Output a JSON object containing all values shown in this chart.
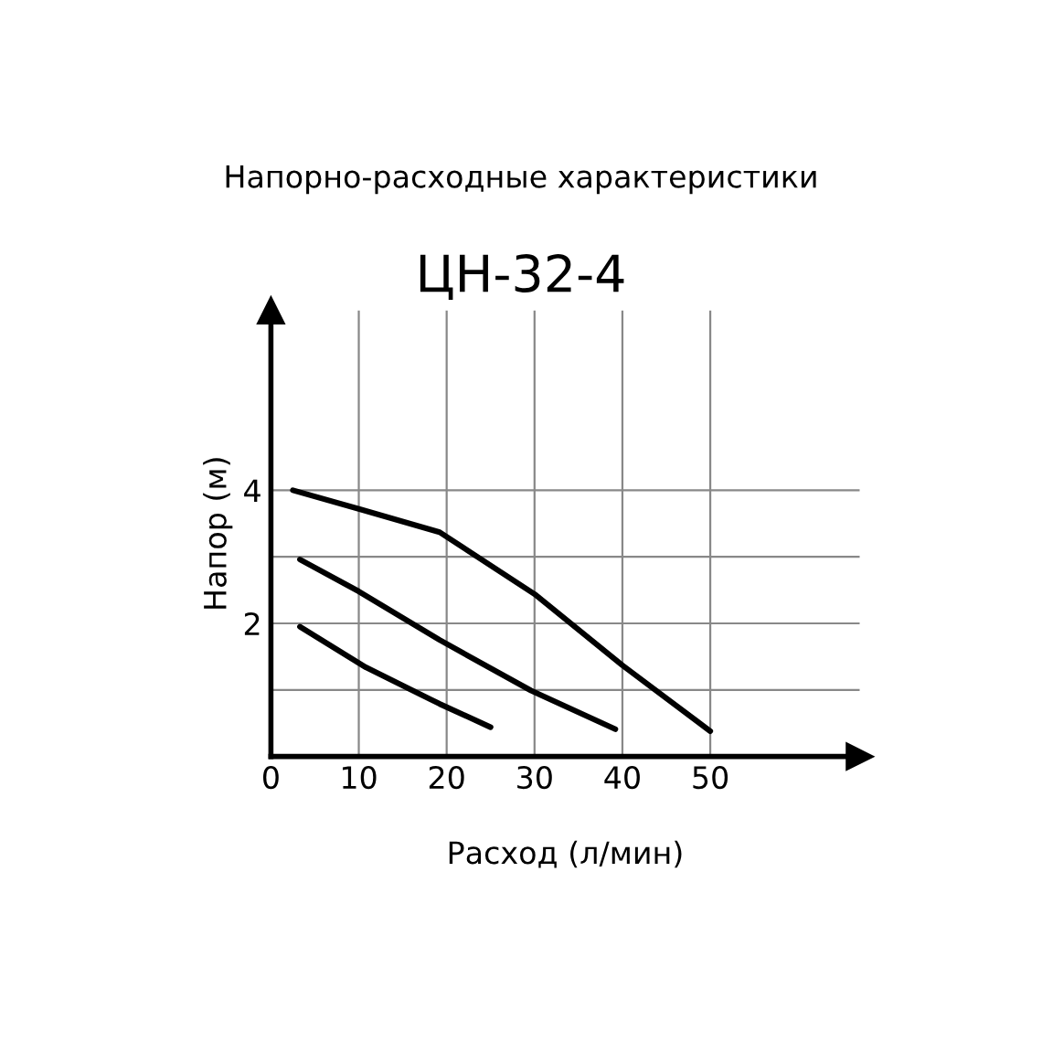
{
  "chart_data": {
    "type": "line",
    "title": "Напорно-расходные характеристики",
    "subtitle": "ЦН-32-4",
    "xlabel": "Расход (л/мин)",
    "ylabel": "Напор (м)",
    "xlim": [
      0,
      67
    ],
    "xticks": [
      0,
      10,
      20,
      30,
      40,
      50
    ],
    "ylim": [
      0,
      6.7
    ],
    "yticks": [
      {
        "value": 1,
        "label": null
      },
      2,
      {
        "value": 3,
        "label": null
      },
      4
    ],
    "grid": true,
    "marker": "none",
    "line_style": "solid",
    "series": [
      {
        "color": "#000000",
        "x": [
          2.5,
          10,
          19.2,
          30,
          40,
          50
        ],
        "values": [
          4.0,
          3.72,
          3.37,
          2.44,
          1.37,
          0.38
        ]
      },
      {
        "color": "#000000",
        "x": [
          3.3,
          10,
          19.2,
          29.6,
          39.2
        ],
        "values": [
          2.96,
          2.48,
          1.75,
          0.99,
          0.41
        ]
      },
      {
        "color": "#000000",
        "x": [
          3.3,
          10.8,
          19.2,
          25
        ],
        "values": [
          1.95,
          1.34,
          0.79,
          0.44
        ]
      }
    ]
  }
}
